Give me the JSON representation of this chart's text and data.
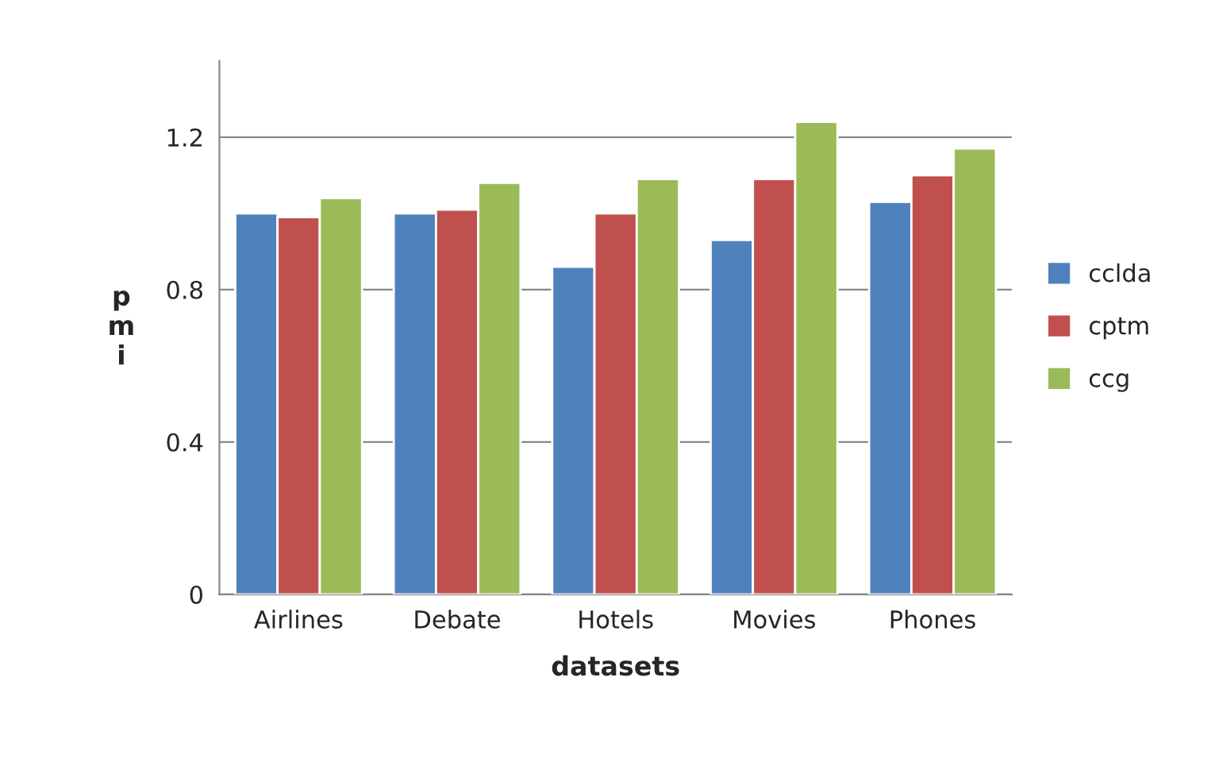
{
  "chart_data": {
    "type": "bar",
    "xlabel": "datasets",
    "ylabel": "pmi",
    "categories": [
      "Airlines",
      "Debate",
      "Hotels",
      "Movies",
      "Phones"
    ],
    "series": [
      {
        "name": "cclda",
        "color": "#4f81bd",
        "values": [
          1.0,
          1.0,
          0.86,
          0.93,
          1.03
        ]
      },
      {
        "name": "cptm",
        "color": "#c0504d",
        "values": [
          0.99,
          1.01,
          1.0,
          1.09,
          1.1
        ]
      },
      {
        "name": "ccg",
        "color": "#9bbb59",
        "values": [
          1.04,
          1.08,
          1.09,
          1.24,
          1.17
        ]
      }
    ],
    "ylim": [
      0,
      1.4
    ],
    "yticks": [
      {
        "value": 0,
        "label": "0"
      },
      0.4,
      0.8,
      1.2
    ],
    "grid": "y",
    "legend": "right"
  }
}
